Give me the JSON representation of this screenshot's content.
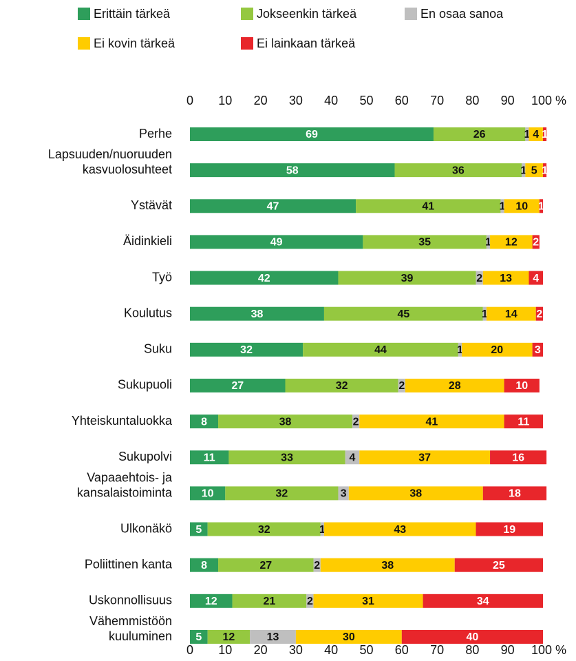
{
  "chart_data": {
    "type": "stacked_barh",
    "categories": [
      "Perhe",
      "Lapsuuden/nuoruuden kasvuolosuhteet",
      "Ystävät",
      "Äidinkieli",
      "Työ",
      "Koulutus",
      "Suku",
      "Sukupuoli",
      "Yhteiskuntaluokka",
      "Sukupolvi",
      "Vapaaehtois- ja kansalaistoiminta",
      "Ulkonäkö",
      "Poliittinen kanta",
      "Uskonnollisuus",
      "Vähemmistöön kuuluminen"
    ],
    "series": [
      {
        "name": "Erittäin tärkeä",
        "color": "#2e9e5b",
        "label_color": "#ffffff",
        "values": [
          69,
          58,
          47,
          49,
          42,
          38,
          32,
          27,
          8,
          11,
          10,
          5,
          8,
          12,
          5
        ]
      },
      {
        "name": "Jokseenkin tärkeä",
        "color": "#95c840",
        "label_color": "#111111",
        "values": [
          26,
          36,
          41,
          35,
          39,
          45,
          44,
          32,
          38,
          33,
          32,
          32,
          27,
          21,
          12
        ]
      },
      {
        "name": "En osaa sanoa",
        "color": "#bfbfbf",
        "label_color": "#111111",
        "values": [
          1,
          1,
          1,
          1,
          2,
          1,
          1,
          2,
          2,
          4,
          3,
          1,
          2,
          2,
          13
        ]
      },
      {
        "name": "Ei kovin tärkeä",
        "color": "#ffcc00",
        "label_color": "#111111",
        "values": [
          4,
          5,
          10,
          12,
          13,
          14,
          20,
          28,
          41,
          37,
          38,
          43,
          38,
          31,
          30
        ]
      },
      {
        "name": "Ei lainkaan tärkeä",
        "color": "#e8262b",
        "label_color": "#ffffff",
        "values": [
          1,
          1,
          1,
          2,
          4,
          2,
          3,
          10,
          11,
          16,
          18,
          19,
          25,
          34,
          40
        ]
      }
    ],
    "xlim": [
      0,
      100
    ],
    "xticks": [
      0,
      10,
      20,
      30,
      40,
      50,
      60,
      70,
      80,
      90,
      {
        "value": 100,
        "label": "100 %"
      }
    ],
    "grid": false
  }
}
